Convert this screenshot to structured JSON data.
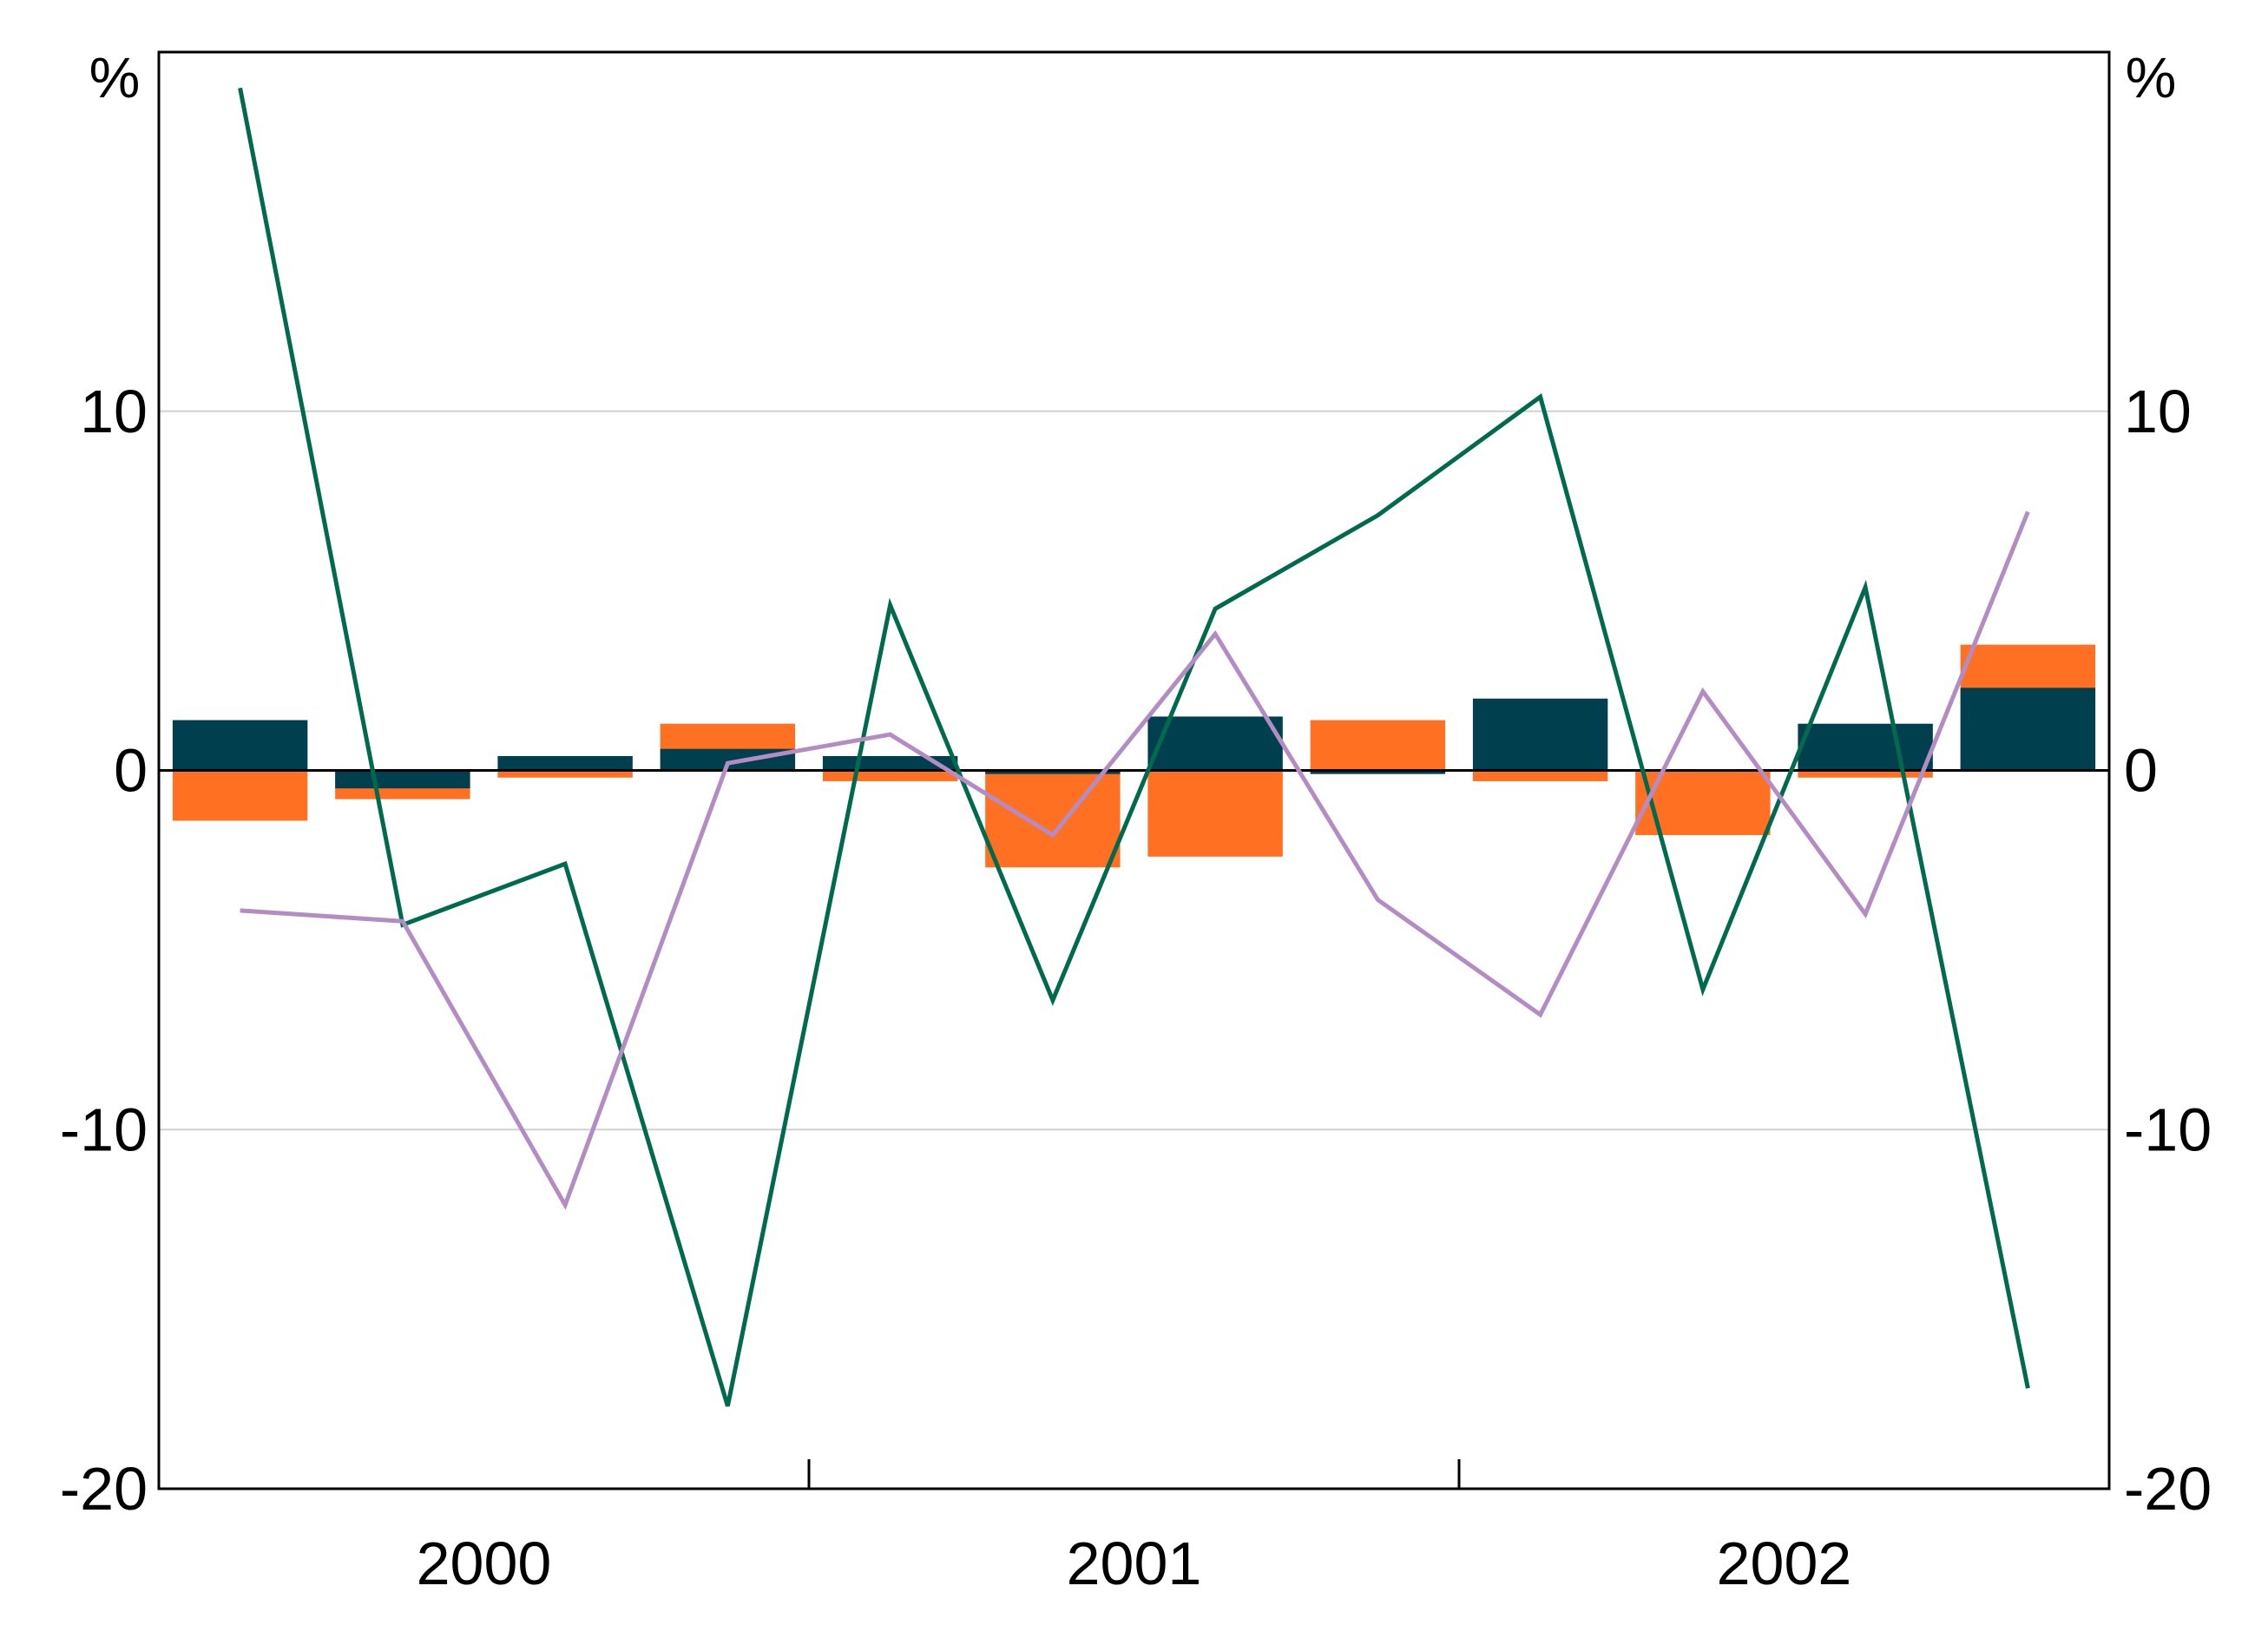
{
  "chart_data": {
    "type": "bar",
    "title": "",
    "xlabel": "",
    "ylabel": "",
    "unit_left": "%",
    "unit_right": "%",
    "ylim": [
      -20,
      20
    ],
    "yticks": [
      -20,
      -10,
      0,
      10
    ],
    "gridlines": [
      -10,
      10
    ],
    "grid": true,
    "legend": "none",
    "x_groups": [
      "2000",
      "2001",
      "2002"
    ],
    "n_periods": 12,
    "bar_series": [
      {
        "color": "#ff7023",
        "values": [
          -1.4,
          -0.8,
          -0.2,
          1.3,
          -0.3,
          -2.7,
          -2.4,
          1.4,
          -0.3,
          -1.8,
          -0.2,
          3.5
        ]
      },
      {
        "color": "#003f4e",
        "values": [
          1.4,
          -0.5,
          0.4,
          0.6,
          0.4,
          -0.1,
          1.5,
          -0.1,
          2.0,
          0.0,
          1.3,
          2.3
        ]
      }
    ],
    "line_series": [
      {
        "color": "#006a4e",
        "values": [
          19.0,
          -4.3,
          -2.6,
          -17.7,
          4.6,
          -6.4,
          4.5,
          7.1,
          10.4,
          -6.1,
          5.1,
          -17.2
        ]
      },
      {
        "color": "#b38cc4",
        "values": [
          -3.9,
          -4.2,
          -12.1,
          0.2,
          1.0,
          -1.8,
          3.8,
          -3.6,
          -6.8,
          2.2,
          -4.0,
          7.2
        ]
      }
    ]
  }
}
